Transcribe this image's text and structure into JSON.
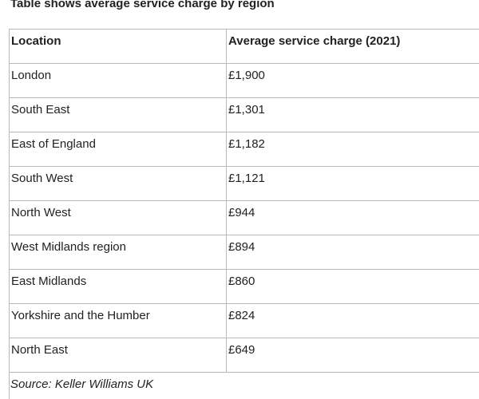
{
  "caption": "Table shows average service charge by region",
  "table": {
    "headers": [
      "Location",
      "Average service charge (2021)"
    ],
    "rows": [
      [
        "London",
        "£1,900"
      ],
      [
        "South East",
        "£1,301"
      ],
      [
        "East of England",
        "£1,182"
      ],
      [
        "South West",
        "£1,121"
      ],
      [
        "North West",
        "£944"
      ],
      [
        "West Midlands region",
        "£894"
      ],
      [
        "East Midlands",
        "£860"
      ],
      [
        "Yorkshire and the Humber",
        "£824"
      ],
      [
        "North East",
        "£649"
      ]
    ]
  },
  "source": "Source: Keller Williams UK"
}
